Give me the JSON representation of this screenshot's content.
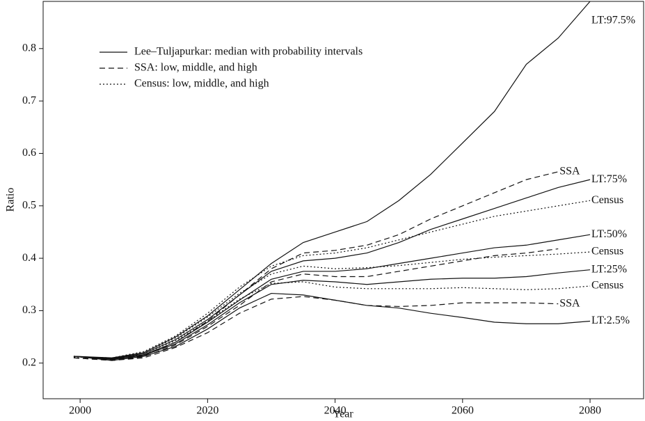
{
  "chart_data": {
    "type": "line",
    "x_label": "Year",
    "y_label": "Ratio",
    "x": [
      1999,
      2005,
      2010,
      2015,
      2020,
      2025,
      2030,
      2035,
      2040,
      2045,
      2050,
      2055,
      2060,
      2065,
      2070,
      2075,
      2080
    ],
    "xlim": [
      1994.2,
      2088.4
    ],
    "xticks": [
      2000,
      2020,
      2040,
      2060,
      2080
    ],
    "ylim": [
      0.132,
      0.89
    ],
    "yticks": [
      0.2,
      0.3,
      0.4,
      0.5,
      0.6,
      0.7,
      0.8
    ],
    "color": "#111111",
    "legend": [
      {
        "name": "Lee–Tuljapurkar: median with probability intervals",
        "dash": "solid"
      },
      {
        "name": "SSA: low, middle, and high",
        "dash": "dashed"
      },
      {
        "name": "Census: low, middle, and high",
        "dash": "dotted"
      }
    ],
    "series": [
      {
        "label": "LT:97.5%",
        "dash": "solid",
        "values": [
          0.213,
          0.21,
          0.22,
          0.25,
          0.29,
          0.34,
          0.39,
          0.43,
          0.45,
          0.47,
          0.51,
          0.56,
          0.62,
          0.68,
          0.77,
          0.82,
          0.89
        ]
      },
      {
        "label": "LT:75%",
        "dash": "solid",
        "values": [
          0.213,
          0.209,
          0.218,
          0.245,
          0.283,
          0.33,
          0.375,
          0.395,
          0.4,
          0.41,
          0.43,
          0.455,
          0.475,
          0.495,
          0.515,
          0.535,
          0.55
        ]
      },
      {
        "label": "LT:50%",
        "dash": "solid",
        "values": [
          0.213,
          0.208,
          0.216,
          0.24,
          0.278,
          0.32,
          0.36,
          0.375,
          0.375,
          0.38,
          0.39,
          0.4,
          0.41,
          0.42,
          0.425,
          0.435,
          0.445
        ]
      },
      {
        "label": "LT:25%",
        "dash": "solid",
        "values": [
          0.213,
          0.207,
          0.215,
          0.237,
          0.273,
          0.315,
          0.35,
          0.358,
          0.355,
          0.35,
          0.355,
          0.36,
          0.362,
          0.362,
          0.365,
          0.372,
          0.378
        ]
      },
      {
        "label": "LT:2.5%",
        "dash": "solid",
        "values": [
          0.213,
          0.205,
          0.213,
          0.232,
          0.265,
          0.305,
          0.333,
          0.33,
          0.32,
          0.31,
          0.305,
          0.295,
          0.287,
          0.278,
          0.275,
          0.275,
          0.28
        ]
      },
      {
        "label": "SSA",
        "dash": "dashed",
        "values": [
          0.21,
          0.205,
          0.21,
          0.23,
          0.258,
          0.295,
          0.322,
          0.327,
          0.32,
          0.31,
          0.308,
          0.31,
          0.315,
          0.315,
          0.315,
          0.313,
          null
        ]
      },
      {
        "dash": "dashed",
        "values": [
          0.21,
          0.205,
          0.212,
          0.235,
          0.27,
          0.31,
          0.355,
          0.37,
          0.365,
          0.365,
          0.375,
          0.385,
          0.395,
          0.405,
          0.41,
          0.418,
          null
        ]
      },
      {
        "label": "SSA",
        "dash": "dashed",
        "values": [
          0.21,
          0.206,
          0.214,
          0.24,
          0.28,
          0.33,
          0.38,
          0.41,
          0.415,
          0.425,
          0.445,
          0.475,
          0.5,
          0.525,
          0.55,
          0.565,
          null
        ]
      },
      {
        "label": "Census",
        "dash": "dotted",
        "values": [
          0.212,
          0.208,
          0.218,
          0.243,
          0.28,
          0.322,
          0.352,
          0.355,
          0.345,
          0.342,
          0.342,
          0.342,
          0.344,
          0.342,
          0.34,
          0.342,
          0.347
        ]
      },
      {
        "label": "Census",
        "dash": "dotted",
        "values": [
          0.212,
          0.209,
          0.22,
          0.248,
          0.288,
          0.333,
          0.37,
          0.385,
          0.38,
          0.382,
          0.386,
          0.392,
          0.398,
          0.402,
          0.405,
          0.408,
          0.412
        ]
      },
      {
        "label": "Census",
        "dash": "dotted",
        "values": [
          0.212,
          0.21,
          0.222,
          0.252,
          0.295,
          0.345,
          0.385,
          0.405,
          0.41,
          0.42,
          0.435,
          0.45,
          0.465,
          0.48,
          0.49,
          0.5,
          0.51
        ]
      }
    ]
  }
}
